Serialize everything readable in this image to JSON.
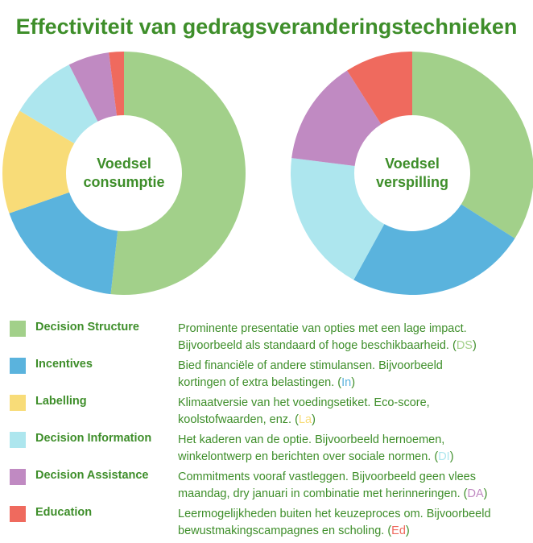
{
  "title": "Effectiviteit van gedragsveranderingstechnieken",
  "colors": {
    "title": "#3e8e2a",
    "decision_structure": "#a2d08a",
    "incentives": "#5ab3dd",
    "labelling": "#f8dc78",
    "decision_information": "#ade6ee",
    "decision_assistance": "#c08ac2",
    "education": "#ef6a5e"
  },
  "chart_data": [
    {
      "type": "pie",
      "title": "Voedsel consumptie",
      "title_lines": [
        "Voedsel",
        "consumptie"
      ],
      "categories": [
        "Decision Structure",
        "Incentives",
        "Labelling",
        "Decision Information",
        "Decision Assistance",
        "Education"
      ],
      "values": [
        52,
        18,
        14,
        9,
        5.5,
        2
      ],
      "donut": true
    },
    {
      "type": "pie",
      "title": "Voedsel verspilling",
      "title_lines": [
        "Voedsel",
        "verspilling"
      ],
      "categories": [
        "Decision Structure",
        "Incentives",
        "Labelling",
        "Decision Information",
        "Decision Assistance",
        "Education"
      ],
      "values": [
        34,
        24,
        0,
        19,
        14,
        9
      ],
      "donut": true
    }
  ],
  "legend": [
    {
      "key": "decision_structure",
      "name": "Decision Structure",
      "desc_line1": "Prominente presentatie van opties met een lage impact.",
      "desc_line2": "Bijvoorbeeld als standaard of hoge beschikbaarheid. (",
      "abbr": "DS",
      "close": ")"
    },
    {
      "key": "incentives",
      "name": "Incentives",
      "desc_line1": "Bied financiële of andere stimulansen. Bijvoorbeeld",
      "desc_line2": "kortingen of  extra belastingen. (",
      "abbr": "In",
      "close": ")"
    },
    {
      "key": "labelling",
      "name": "Labelling",
      "desc_line1": "Klimaatversie van het voedingsetiket. Eco-score,",
      "desc_line2": "koolstofwaarden, enz. (",
      "abbr": "La",
      "close": ")"
    },
    {
      "key": "decision_information",
      "name": "Decision Information",
      "desc_line1": "Het kaderen van de optie. Bijvoorbeeld hernoemen,",
      "desc_line2": "winkelontwerp en berichten over sociale normen. (",
      "abbr": "DI",
      "close": ")"
    },
    {
      "key": "decision_assistance",
      "name": "Decision Assistance",
      "desc_line1": "Commitments vooraf vastleggen. Bijvoorbeeld geen vlees",
      "desc_line2": "maandag, dry januari in combinatie met herinneringen. (",
      "abbr": "DA",
      "close": ")"
    },
    {
      "key": "education",
      "name": "Education",
      "desc_line1": "Leermogelijkheden buiten het keuzeproces om. Bijvoorbeeld",
      "desc_line2": "bewustmakingscampagnes en scholing. (",
      "abbr": "Ed",
      "close": ")"
    }
  ]
}
